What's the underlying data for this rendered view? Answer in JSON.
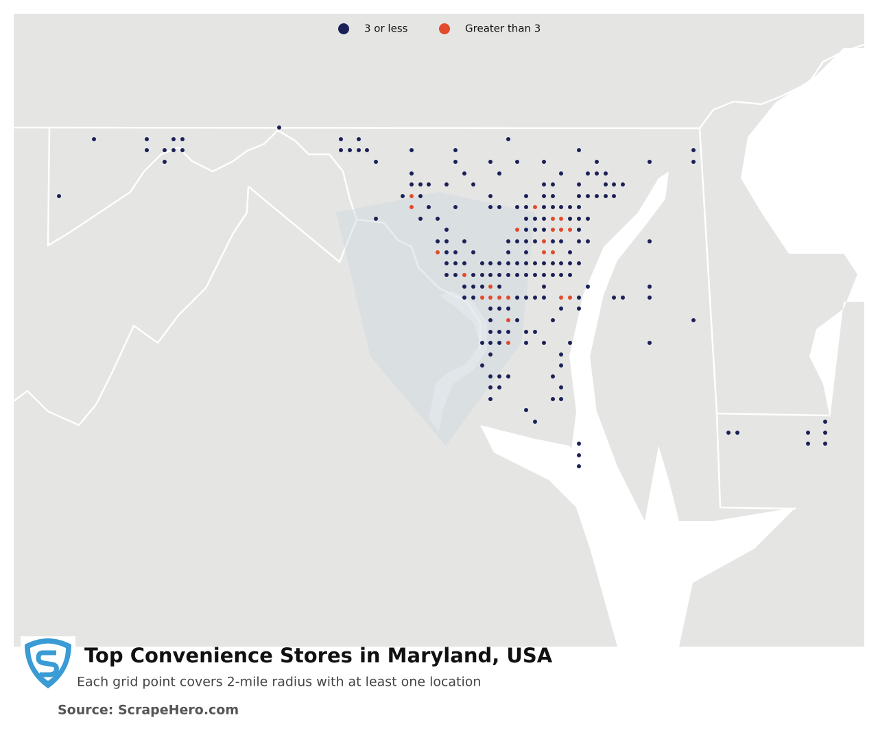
{
  "legend": [
    {
      "label": "3 or less",
      "color": "#1b2157"
    },
    {
      "label": "Greater than 3",
      "color": "#e24a2a"
    }
  ],
  "title": "Top Convenience Stores in Maryland, USA",
  "subtitle": "Each grid point covers 2-mile radius with at least one location",
  "source": "Source: ScrapeHero.com"
}
